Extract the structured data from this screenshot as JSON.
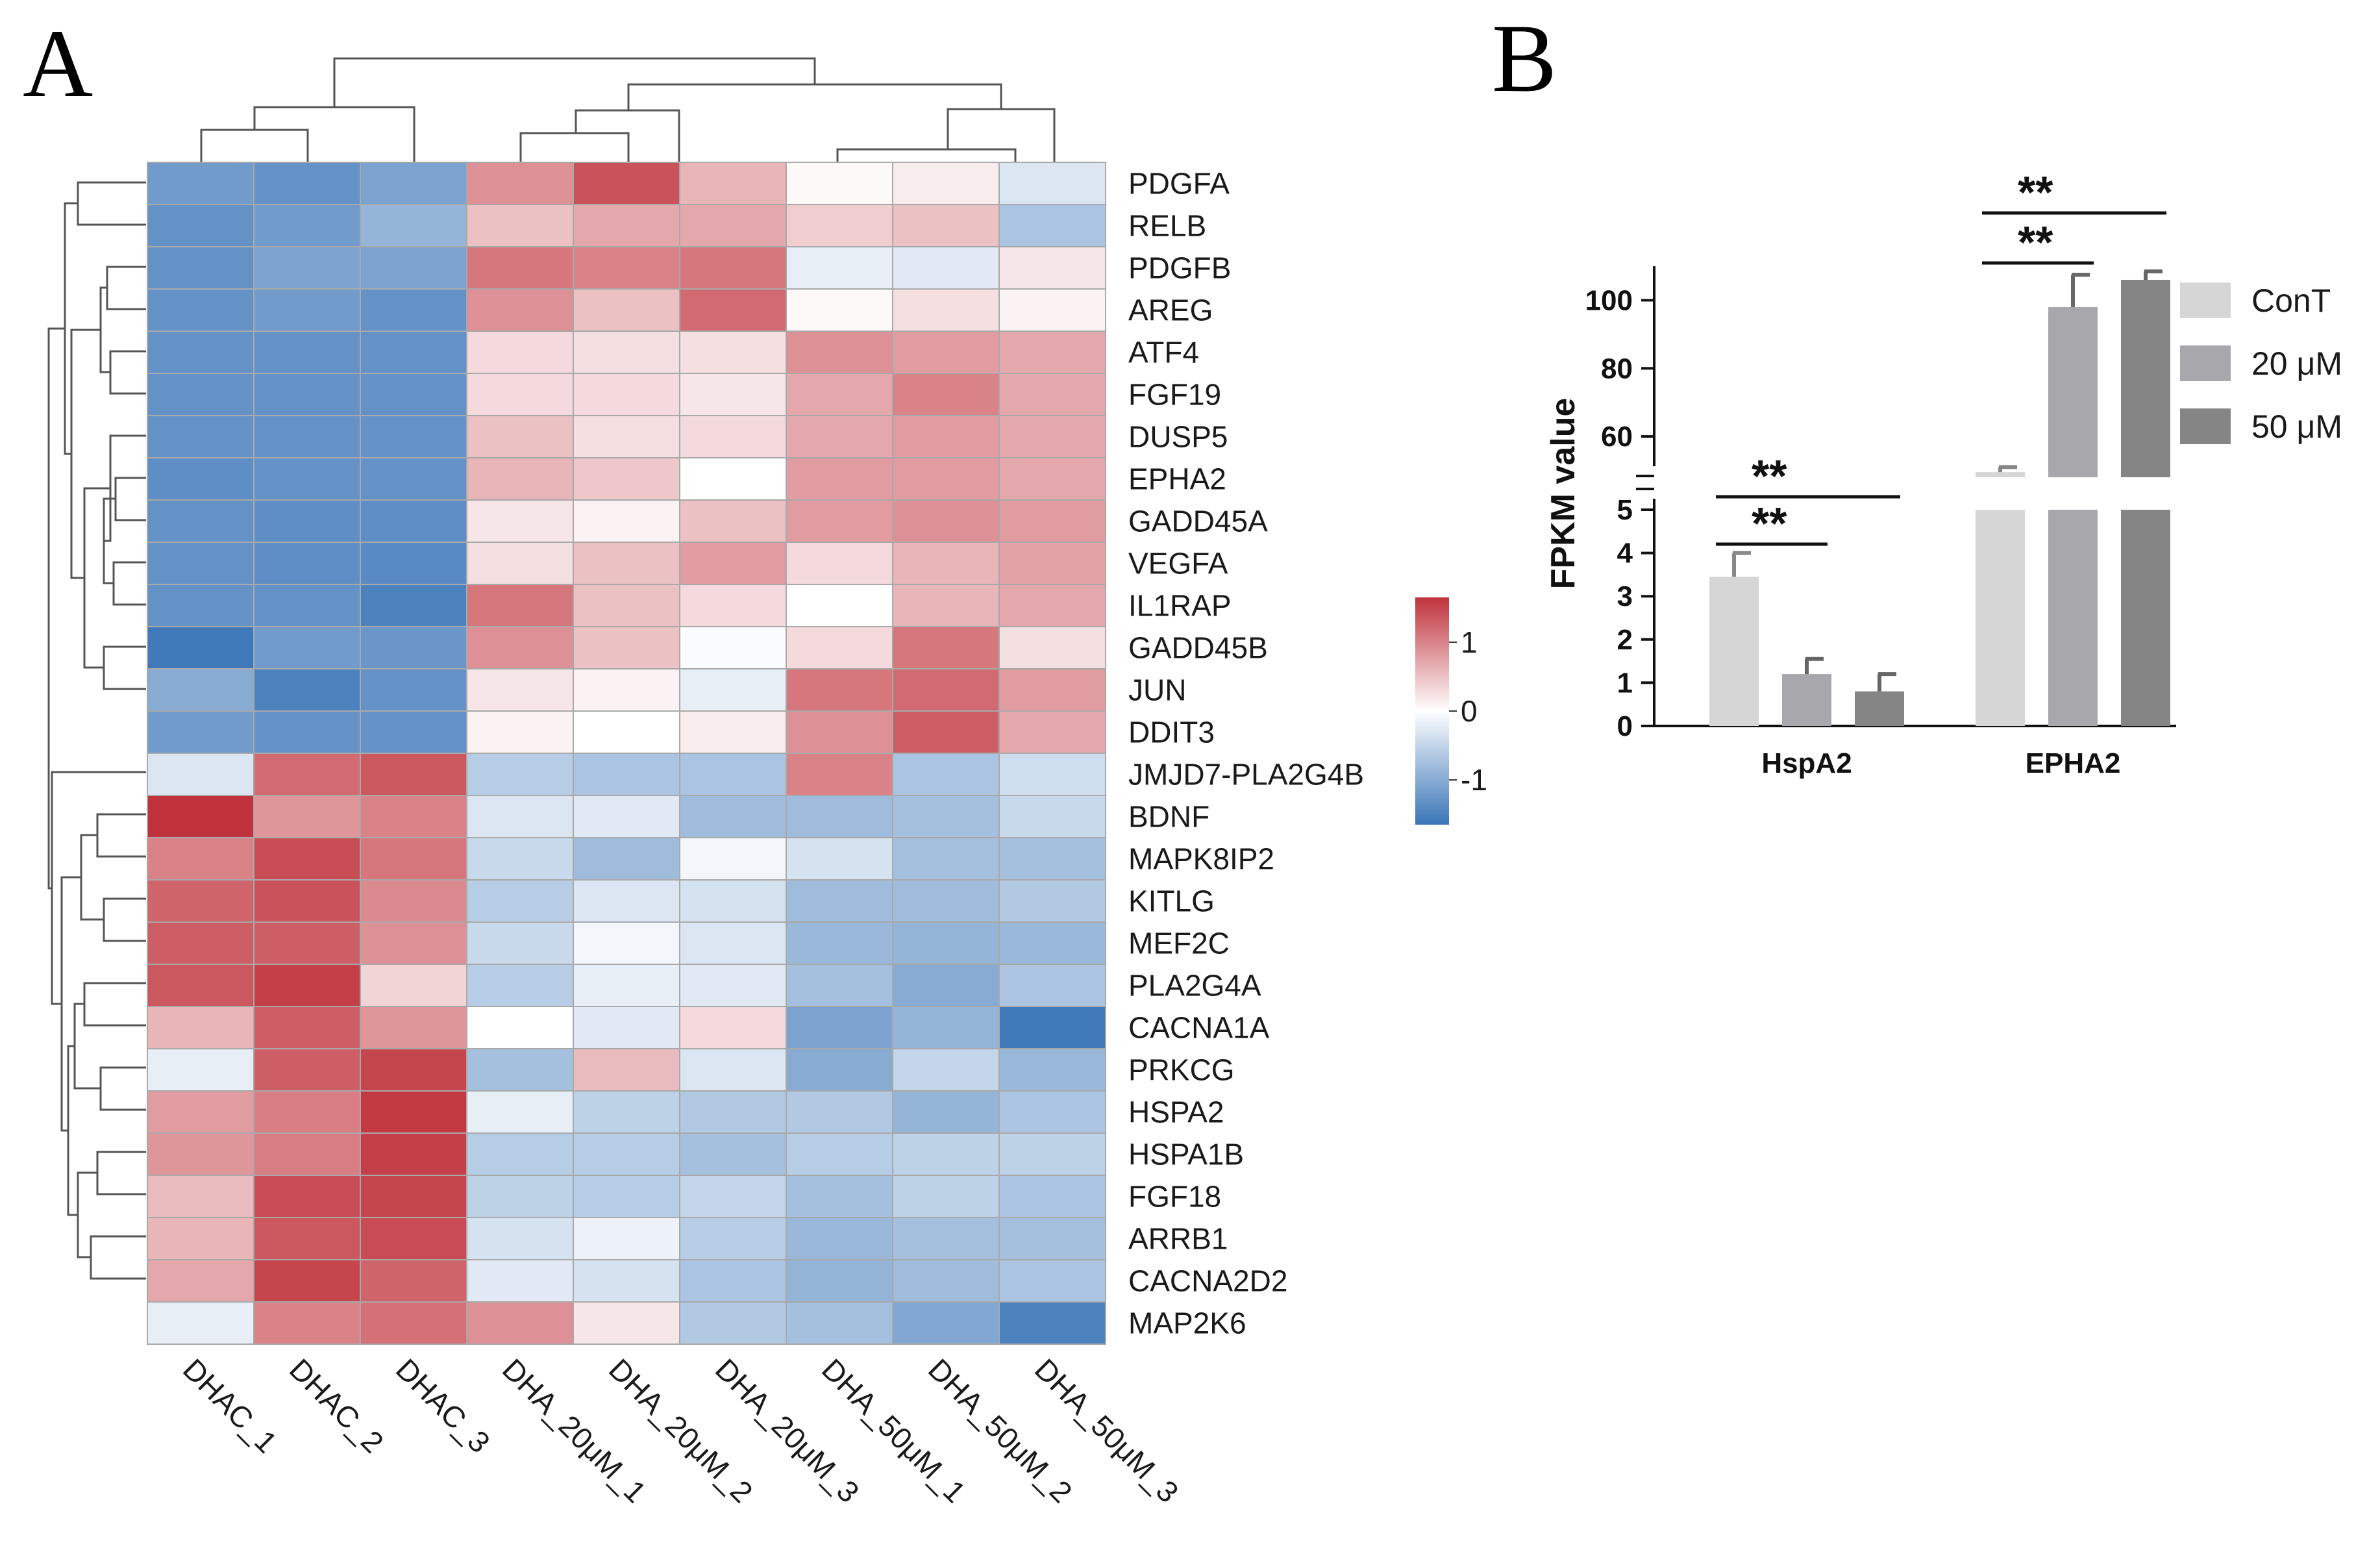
{
  "panel_labels": {
    "a": "A",
    "b": "B"
  },
  "chart_data": [
    {
      "type": "heatmap",
      "panel": "A",
      "title": "",
      "samples": [
        "DHAC_1",
        "DHAC_2",
        "DHAC_3",
        "DHA_20μM_1",
        "DHA_20μM_2",
        "DHA_20μM_3",
        "DHA_50μM_1",
        "DHA_50μM_2",
        "DHA_50μM_3"
      ],
      "genes": [
        "PDGFA",
        "RELB",
        "PDGFB",
        "AREG",
        "ATF4",
        "FGF19",
        "DUSP5",
        "EPHA2",
        "GADD45A",
        "VEGFA",
        "IL1RAP",
        "GADD45B",
        "JUN",
        "DDIT3",
        "JMJD7-PLA2G4B",
        "BDNF",
        "MAPK8IP2",
        "KITLG",
        "MEF2C",
        "PLA2G4A",
        "CACNA1A",
        "PRKCG",
        "HSPA2",
        "HSPA1B",
        "FGF18",
        "ARRB1",
        "CACNA2D2",
        "MAP2K6"
      ],
      "values": [
        [
          -1.2,
          -1.3,
          -1.1,
          0.9,
          1.4,
          0.6,
          0.05,
          0.15,
          -0.3
        ],
        [
          -1.3,
          -1.2,
          -0.9,
          0.5,
          0.7,
          0.7,
          0.4,
          0.5,
          -0.7
        ],
        [
          -1.3,
          -1.1,
          -1.1,
          1.1,
          1.0,
          1.1,
          -0.2,
          -0.25,
          0.2
        ],
        [
          -1.3,
          -1.2,
          -1.3,
          0.9,
          0.5,
          1.2,
          0.05,
          0.25,
          0.1
        ],
        [
          -1.3,
          -1.3,
          -1.3,
          0.3,
          0.25,
          0.25,
          0.9,
          0.8,
          0.7
        ],
        [
          -1.3,
          -1.3,
          -1.3,
          0.3,
          0.3,
          0.2,
          0.7,
          1.0,
          0.7
        ],
        [
          -1.3,
          -1.3,
          -1.3,
          0.5,
          0.25,
          0.3,
          0.7,
          0.8,
          0.7
        ],
        [
          -1.35,
          -1.3,
          -1.3,
          0.6,
          0.45,
          0.0,
          0.8,
          0.8,
          0.7
        ],
        [
          -1.3,
          -1.35,
          -1.35,
          0.2,
          0.1,
          0.5,
          0.8,
          0.9,
          0.8
        ],
        [
          -1.3,
          -1.35,
          -1.4,
          0.25,
          0.5,
          0.8,
          0.3,
          0.6,
          0.75
        ],
        [
          -1.3,
          -1.3,
          -1.5,
          1.1,
          0.5,
          0.3,
          0.0,
          0.6,
          0.7
        ],
        [
          -1.6,
          -1.2,
          -1.25,
          0.9,
          0.5,
          -0.05,
          0.3,
          1.1,
          0.25
        ],
        [
          -1.0,
          -1.5,
          -1.3,
          0.2,
          0.1,
          -0.2,
          1.1,
          1.2,
          0.8
        ],
        [
          -1.2,
          -1.3,
          -1.3,
          0.1,
          0.0,
          0.15,
          0.9,
          1.3,
          0.7
        ],
        [
          -0.3,
          1.2,
          1.35,
          -0.6,
          -0.7,
          -0.7,
          1.0,
          -0.7,
          -0.4
        ],
        [
          1.65,
          0.85,
          1.0,
          -0.3,
          -0.25,
          -0.8,
          -0.8,
          -0.75,
          -0.45
        ],
        [
          1.0,
          1.45,
          1.1,
          -0.45,
          -0.8,
          -0.1,
          -0.35,
          -0.75,
          -0.75
        ],
        [
          1.25,
          1.4,
          0.95,
          -0.6,
          -0.3,
          -0.35,
          -0.8,
          -0.8,
          -0.65
        ],
        [
          1.3,
          1.3,
          0.9,
          -0.45,
          -0.1,
          -0.3,
          -0.85,
          -0.9,
          -0.85
        ],
        [
          1.35,
          1.55,
          0.35,
          -0.6,
          -0.2,
          -0.25,
          -0.75,
          -1.0,
          -0.7
        ],
        [
          0.6,
          1.3,
          0.85,
          0.0,
          -0.25,
          0.3,
          -1.1,
          -0.9,
          -1.6
        ],
        [
          -0.2,
          1.3,
          1.5,
          -0.75,
          0.55,
          -0.3,
          -1.0,
          -0.5,
          -0.85
        ],
        [
          0.8,
          1.05,
          1.6,
          -0.2,
          -0.55,
          -0.65,
          -0.65,
          -0.9,
          -0.7
        ],
        [
          0.85,
          1.05,
          1.55,
          -0.6,
          -0.6,
          -0.75,
          -0.6,
          -0.55,
          -0.55
        ],
        [
          0.55,
          1.45,
          1.5,
          -0.55,
          -0.6,
          -0.5,
          -0.75,
          -0.55,
          -0.7
        ],
        [
          0.6,
          1.35,
          1.45,
          -0.35,
          -0.15,
          -0.6,
          -0.85,
          -0.75,
          -0.75
        ],
        [
          0.7,
          1.5,
          1.25,
          -0.25,
          -0.35,
          -0.7,
          -0.9,
          -0.8,
          -0.7
        ],
        [
          -0.2,
          1.0,
          1.15,
          0.9,
          0.2,
          -0.65,
          -0.75,
          -1.05,
          -1.5
        ]
      ],
      "colorbar": {
        "ticks": [
          "1",
          "0",
          "-1"
        ],
        "tick_values": [
          1,
          0,
          -1
        ],
        "range": [
          -1.65,
          1.65
        ],
        "low_color": "#3a75b8",
        "mid_color": "#ffffff",
        "high_color": "#c0333c"
      }
    },
    {
      "type": "bar",
      "panel": "B",
      "ylabel": "FPKM value",
      "categories": [
        "HspA2",
        "EPHA2"
      ],
      "series": [
        {
          "name": "ConT",
          "color": "#d6d6d6",
          "values": [
            3.45,
            49.5
          ],
          "errors": [
            0.55,
            1.5
          ]
        },
        {
          "name": "20 μM",
          "color": "#a8a8ac",
          "values": [
            1.2,
            98
          ],
          "errors": [
            0.35,
            9.5
          ]
        },
        {
          "name": "50 μM",
          "color": "#858585",
          "values": [
            0.8,
            106
          ],
          "errors": [
            0.4,
            2.5
          ]
        }
      ],
      "axis_segments": {
        "lower": {
          "range": [
            0,
            5
          ],
          "ticks": [
            "0",
            "1",
            "2",
            "3",
            "4",
            "5"
          ]
        },
        "upper": {
          "range": [
            48,
            110
          ],
          "ticks": [
            "60",
            "80",
            "100"
          ]
        }
      },
      "significance": [
        {
          "category": "HspA2",
          "from": "ConT",
          "to": "20 μM",
          "label": "**"
        },
        {
          "category": "HspA2",
          "from": "ConT",
          "to": "50 μM",
          "label": "**"
        },
        {
          "category": "EPHA2",
          "from": "ConT",
          "to": "20 μM",
          "label": "**"
        },
        {
          "category": "EPHA2",
          "from": "ConT",
          "to": "50 μM",
          "label": "**"
        }
      ],
      "legend_position": "right"
    }
  ]
}
